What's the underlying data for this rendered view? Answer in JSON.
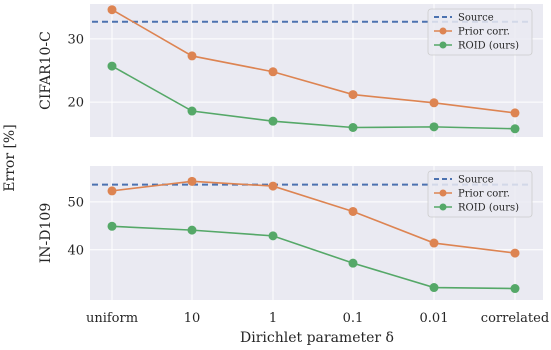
{
  "chart_data": {
    "type": "line",
    "shared_ylabel": "Error [%]",
    "xlabel": "Dirichlet parameter δ",
    "categories": [
      "uniform",
      "10",
      "1",
      "0.1",
      "0.01",
      "correlated"
    ],
    "grid": true,
    "legend_placement": "top-right",
    "colors": {
      "Source": "#4c72b0",
      "Prior corr.": "#dd8452",
      "ROID (ours)": "#55a868",
      "panel_bg": "#eaeaf2",
      "grid": "#ffffff"
    },
    "panels": [
      {
        "ylabel": "CIFAR10-C",
        "ylim": [
          14.5,
          35.5
        ],
        "yticks": [
          20,
          30
        ],
        "series": [
          {
            "name": "Source",
            "style": "dashed",
            "values": [
              32.7,
              32.7,
              32.7,
              32.7,
              32.7,
              32.7
            ]
          },
          {
            "name": "Prior corr.",
            "style": "solid-marker",
            "values": [
              34.6,
              27.3,
              24.8,
              21.2,
              19.9,
              18.3
            ]
          },
          {
            "name": "ROID (ours)",
            "style": "solid-marker",
            "values": [
              25.7,
              18.6,
              17.0,
              16.0,
              16.1,
              15.8
            ]
          }
        ]
      },
      {
        "ylabel": "IN-D109",
        "ylim": [
          29.5,
          57.5
        ],
        "yticks": [
          40,
          50
        ],
        "series": [
          {
            "name": "Source",
            "style": "dashed",
            "values": [
              53.6,
              53.6,
              53.6,
              53.6,
              53.6,
              53.6
            ]
          },
          {
            "name": "Prior corr.",
            "style": "solid-marker",
            "values": [
              52.3,
              54.3,
              53.3,
              48.0,
              41.4,
              39.3
            ]
          },
          {
            "name": "ROID (ours)",
            "style": "solid-marker",
            "values": [
              44.9,
              44.1,
              42.9,
              37.2,
              32.1,
              31.9
            ]
          }
        ]
      }
    ]
  }
}
